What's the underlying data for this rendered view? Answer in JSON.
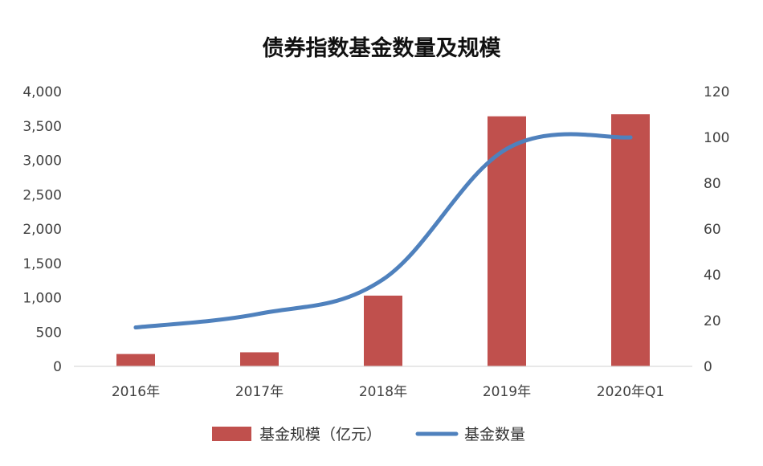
{
  "chart_data": {
    "type": "bar",
    "title": "债券指数基金数量及规模",
    "categories": [
      "2016年",
      "2017年",
      "2018年",
      "2019年",
      "2020年Q1"
    ],
    "series": [
      {
        "name": "基金规模（亿元）",
        "type": "bar",
        "axis": "left",
        "color": "#C0504D",
        "values": [
          180,
          205,
          1030,
          3640,
          3670
        ]
      },
      {
        "name": "基金数量",
        "type": "line",
        "axis": "right",
        "color": "#4F81BD",
        "values": [
          17,
          23,
          38,
          95,
          100
        ]
      }
    ],
    "y_left": {
      "ylim": [
        0,
        4000
      ],
      "ticks": [
        0,
        500,
        1000,
        1500,
        2000,
        2500,
        3000,
        3500,
        4000
      ],
      "tick_labels": [
        "0",
        "500",
        "1,000",
        "1,500",
        "2,000",
        "2,500",
        "3,000",
        "3,500",
        "4,000"
      ]
    },
    "y_right": {
      "ylim": [
        0,
        120
      ],
      "ticks": [
        0,
        20,
        40,
        60,
        80,
        100,
        120
      ],
      "tick_labels": [
        "0",
        "20",
        "40",
        "60",
        "80",
        "100",
        "120"
      ]
    },
    "grid": false,
    "legend_position": "bottom"
  }
}
